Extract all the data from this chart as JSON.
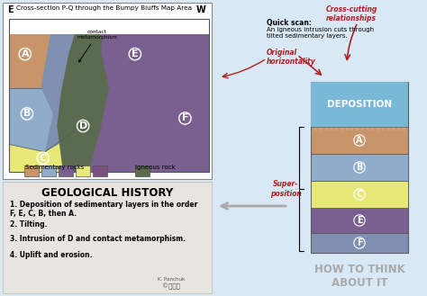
{
  "bg_color": "#dce8f0",
  "cross_section_title": "Cross-section P-Q through the Bumpy Bluffs Map Area",
  "geo_history_title": "GEOLOGICAL HISTORY",
  "geo_history_items": [
    "1. Deposition of sedimentary layers in the order\nF, E, C, B, then A.",
    "2. Tilting.",
    "3. Intrusion of D and contact metamorphism.",
    "4. Uplift and erosion."
  ],
  "sed_rock_colors": [
    "#c8956a",
    "#8facc8",
    "#7a6090",
    "#e8e877",
    "#7a5080"
  ],
  "ign_rock_color": "#5a6b50",
  "cross_cutting_text": "Cross-cutting\nrelationships",
  "quick_scan_bold": "Quick scan:",
  "quick_scan_body": "An igneous intrusion cuts through\ntilted sedimentary layers.",
  "original_horiz_text": "Original\nhorizontality",
  "superposition_text": "Super-\nposition",
  "deposition_text": "DEPOSITION",
  "how_to_think_text": "HOW TO THINK\nABOUT IT",
  "red_color": "#aa2222",
  "layer_A_color": "#c8956a",
  "layer_B_color": "#8facc8",
  "layer_C_color": "#e8e877",
  "layer_D_color": "#5a6b50",
  "layer_E_color": "#7a6090",
  "layer_F_color": "#8090b0",
  "water_color": "#7ab8d8",
  "depo_box_color": "#a8cce0",
  "light_gray_text": "#aaaaaa",
  "gh_bg_color": "#e8e4df",
  "right_bg_color": "#d8e8f4"
}
